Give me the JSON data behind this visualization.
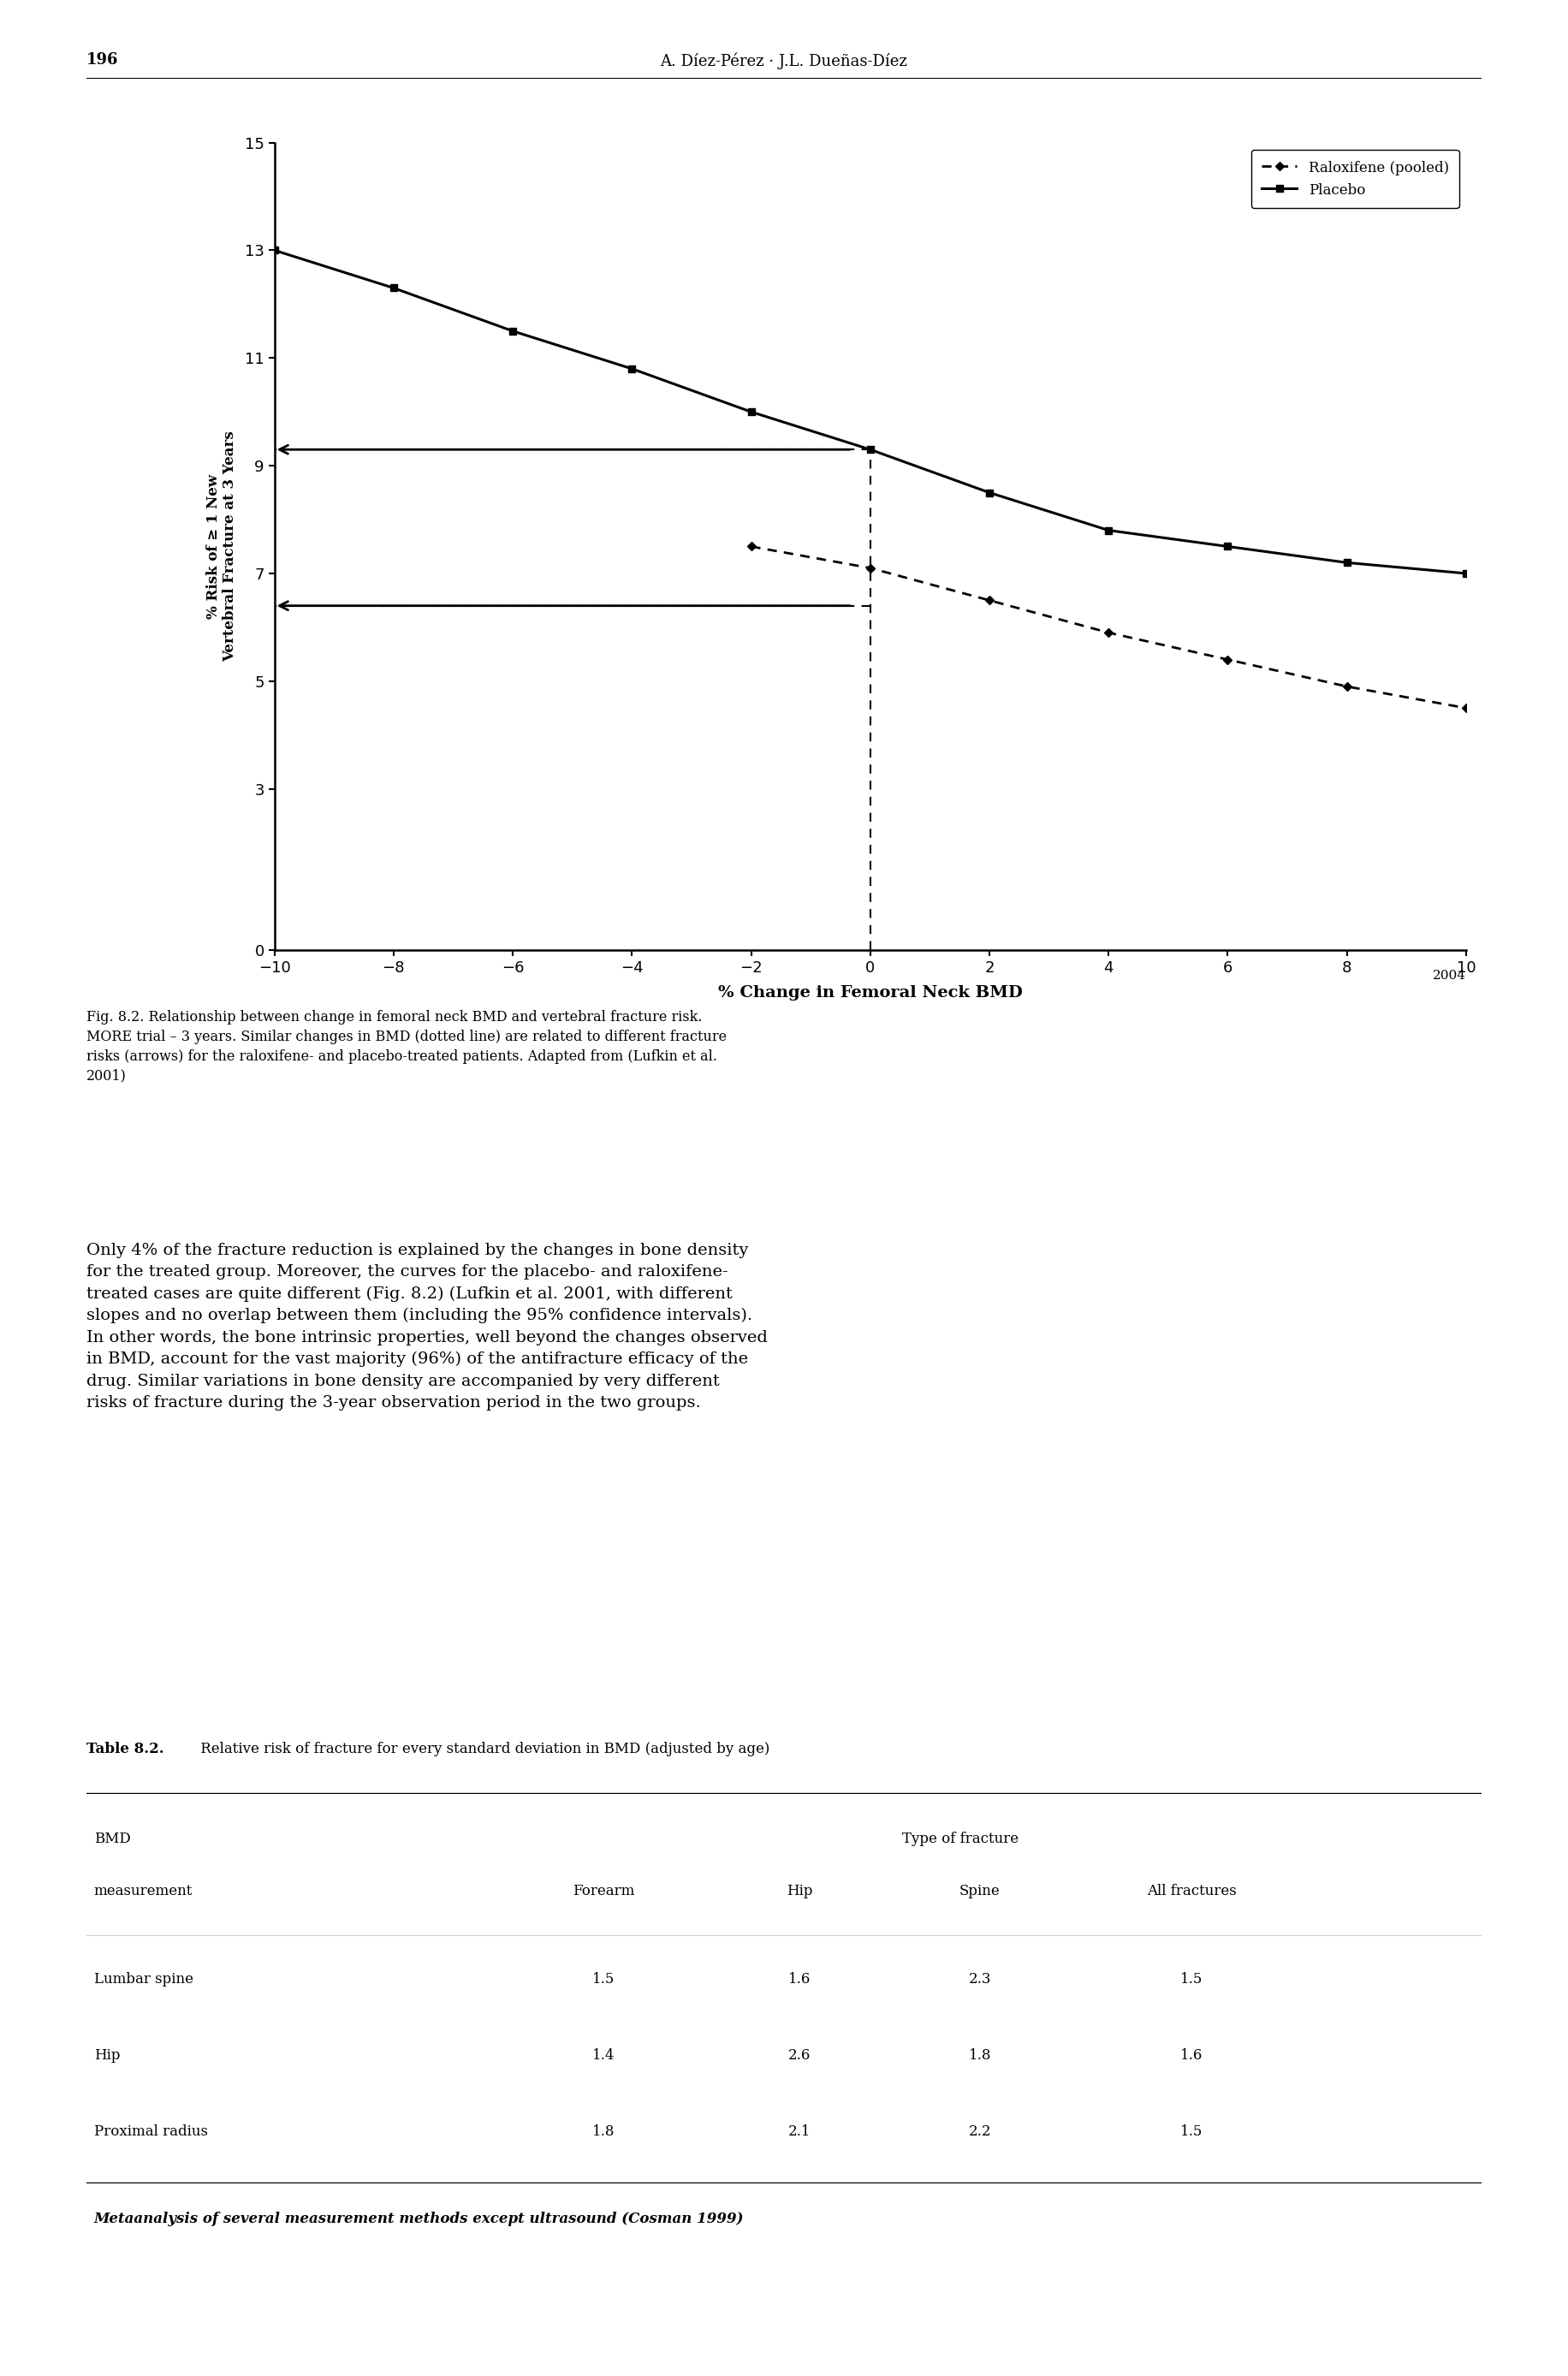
{
  "page_number": "196",
  "header_text": "A. Díez-Pérez · J.L. Dueñas-Díez",
  "year_label": "2004",
  "placebo_x": [
    -10,
    -8,
    -6,
    -4,
    -2,
    0,
    2,
    4,
    6,
    8,
    10
  ],
  "placebo_y": [
    13.0,
    12.3,
    11.5,
    10.8,
    10.0,
    9.3,
    8.5,
    7.8,
    7.5,
    7.2,
    7.0
  ],
  "raloxifene_x": [
    -2,
    0,
    2,
    4,
    6,
    8,
    10
  ],
  "raloxifene_y": [
    7.5,
    7.1,
    6.5,
    5.9,
    5.4,
    4.9,
    4.5
  ],
  "xlabel": "% Change in Femoral Neck BMD",
  "ylabel": "% Risk of ≥ 1 New\nVertebral Fracture at 3 Years",
  "xlim": [
    -10,
    10
  ],
  "ylim": [
    0,
    15
  ],
  "yticks": [
    0,
    3,
    5,
    7,
    9,
    11,
    13,
    15
  ],
  "xticks": [
    -10,
    -8,
    -6,
    -4,
    -2,
    0,
    2,
    4,
    6,
    8,
    10
  ],
  "dashed_h1_y": 9.3,
  "dashed_h2_y": 6.4,
  "legend_raloxifene": "Raloxifene (pooled)",
  "legend_placebo": "Placebo",
  "caption_fig_bold": "Fig. 8.2.",
  "caption_rest": " Relationship between change in femoral neck BMD and vertebral fracture risk.\nMORE trial – 3 years. Similar changes in BMD (",
  "caption_italic1": "dotted line",
  "caption_mid": ") are related to different fracture\nrisks (",
  "caption_italic2": "arrows",
  "caption_end": ") for the raloxifene- and placebo-treated patients. Adapted from (Lufkin et al.\n2001)",
  "body_text_line1": "Only 4% of the fracture reduction is explained by the changes in bone density",
  "body_text_line2": "for the treated group. Moreover, the curves for the placebo- and raloxifene-",
  "body_text_line3": "treated cases are quite different (Fig. 8.2) (Lufkin et al. 2001, with different",
  "body_text_line4": "slopes and no overlap between them (including the 95% confidence intervals).",
  "body_text_line5": "In other words, the bone intrinsic properties, well beyond the changes observed",
  "body_text_line6": "in BMD, account for the vast majority (96%) of the antifracture efficacy of the",
  "body_text_line7": "drug. Similar variations in bone density are accompanied by very different",
  "body_text_line8": "risks of fracture during the 3-year observation period in the two groups.",
  "table_title_bold": "Table 8.2.",
  "table_title_normal": " Relative risk of fracture for every standard deviation in BMD (adjusted by age)",
  "table_subheader": "Type of fracture",
  "table_col0_header": "BMD",
  "table_col0_header2": "measurement",
  "table_col_headers": [
    "Forearm",
    "Hip",
    "Spine",
    "All fractures"
  ],
  "table_rows": [
    [
      "Lumbar spine",
      "1.5",
      "1.6",
      "2.3",
      "1.5"
    ],
    [
      "Hip",
      "1.4",
      "2.6",
      "1.8",
      "1.6"
    ],
    [
      "Proximal radius",
      "1.8",
      "2.1",
      "2.2",
      "1.5"
    ]
  ],
  "table_footer": "Metaanalysis of several measurement methods except ultrasound (Cosman 1999)",
  "bg_color": "#ffffff"
}
